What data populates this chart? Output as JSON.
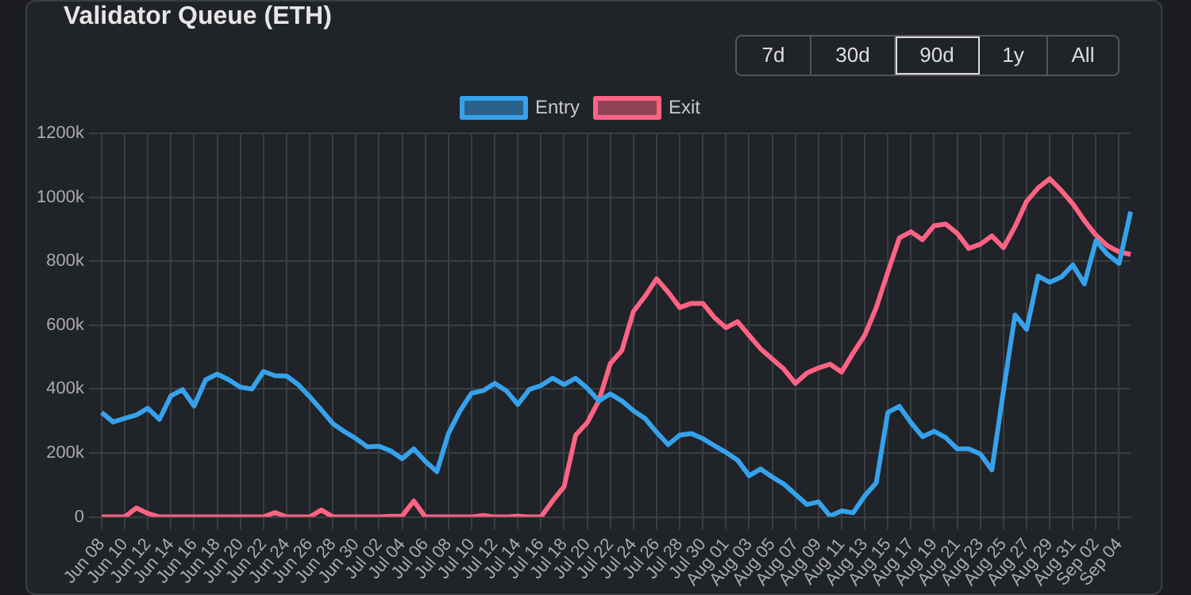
{
  "chart_data": {
    "type": "line",
    "title": "Validator Queue (ETH)",
    "annotations": [
      "7d",
      "30d",
      "90d",
      "1y",
      "All"
    ],
    "categories": [
      "Jun 08",
      null,
      "Jun 10",
      null,
      "Jun 12",
      null,
      "Jun 14",
      null,
      "Jun 16",
      null,
      "Jun 18",
      null,
      "Jun 20",
      null,
      "Jun 22",
      null,
      "Jun 24",
      null,
      "Jun 26",
      null,
      "Jun 28",
      null,
      "Jun 30",
      null,
      "Jul 02",
      null,
      "Jul 04",
      null,
      "Jul 06",
      null,
      "Jul 08",
      null,
      "Jul 10",
      null,
      "Jul 12",
      null,
      "Jul 14",
      null,
      "Jul 16",
      null,
      "Jul 18",
      null,
      "Jul 20",
      null,
      "Jul 22",
      null,
      "Jul 24",
      null,
      "Jul 26",
      null,
      "Jul 28",
      null,
      "Jul 30",
      null,
      "Aug 01",
      null,
      "Aug 03",
      null,
      "Aug 05",
      null,
      "Aug 07",
      null,
      "Aug 09",
      null,
      "Aug 11",
      null,
      "Aug 13",
      null,
      "Aug 15",
      null,
      "Aug 17",
      null,
      "Aug 19",
      null,
      "Aug 21",
      null,
      "Aug 23",
      null,
      "Aug 25",
      null,
      "Aug 27",
      null,
      "Aug 29",
      null,
      "Aug 31",
      null,
      "Sep 02",
      null,
      "Sep 04",
      null
    ],
    "series": [
      {
        "name": "Entry",
        "color": "#36a2eb",
        "values": [
          327000,
          297000,
          308000,
          319000,
          340000,
          305000,
          379000,
          398000,
          347000,
          429000,
          447000,
          429000,
          406000,
          400000,
          455000,
          442000,
          441000,
          414000,
          376000,
          335000,
          292000,
          267000,
          245000,
          219000,
          221000,
          207000,
          182000,
          213000,
          174000,
          142000,
          261000,
          332000,
          387000,
          395000,
          418000,
          395000,
          352000,
          399000,
          411000,
          434000,
          414000,
          434000,
          403000,
          363000,
          385000,
          363000,
          332000,
          308000,
          265000,
          226000,
          256000,
          261000,
          245000,
          223000,
          202000,
          178000,
          129000,
          150000,
          125000,
          103000,
          71000,
          39000,
          47000,
          3000,
          19000,
          13000,
          66000,
          107000,
          327000,
          346000,
          295000,
          251000,
          268000,
          248000,
          213000,
          213000,
          197000,
          147000,
          395000,
          632000,
          587000,
          753000,
          734000,
          750000,
          788000,
          729000,
          864000,
          821000,
          793000,
          955000
        ]
      },
      {
        "name": "Exit",
        "color": "#ff6384",
        "values": [
          0,
          0,
          0,
          28000,
          11000,
          0,
          0,
          0,
          0,
          0,
          0,
          0,
          0,
          0,
          0,
          14000,
          0,
          0,
          0,
          22000,
          0,
          0,
          0,
          0,
          0,
          2000,
          3000,
          50000,
          0,
          0,
          0,
          0,
          0,
          5000,
          0,
          0,
          3000,
          0,
          0,
          50000,
          95000,
          256000,
          295000,
          363000,
          480000,
          521000,
          643000,
          690000,
          745000,
          703000,
          655000,
          668000,
          668000,
          624000,
          592000,
          611000,
          568000,
          526000,
          494000,
          463000,
          418000,
          450000,
          466000,
          478000,
          453000,
          513000,
          568000,
          655000,
          766000,
          873000,
          892000,
          867000,
          911000,
          916000,
          887000,
          840000,
          853000,
          879000,
          842000,
          908000,
          987000,
          1029000,
          1058000,
          1021000,
          979000,
          927000,
          881000,
          848000,
          829000,
          821000
        ]
      }
    ],
    "ylim": [
      0,
      1200000
    ],
    "yticks": [
      {
        "value": 0,
        "label": "0"
      },
      {
        "value": 200000,
        "label": "200k"
      },
      {
        "value": 400000,
        "label": "400k"
      },
      {
        "value": 600000,
        "label": "600k"
      },
      {
        "value": 800000,
        "label": "800k"
      },
      {
        "value": 1000000,
        "label": "1000k"
      },
      {
        "value": 1200000,
        "label": "1200k"
      }
    ],
    "grid": true,
    "legend": "top",
    "marker": "none",
    "line_style": "solid"
  }
}
